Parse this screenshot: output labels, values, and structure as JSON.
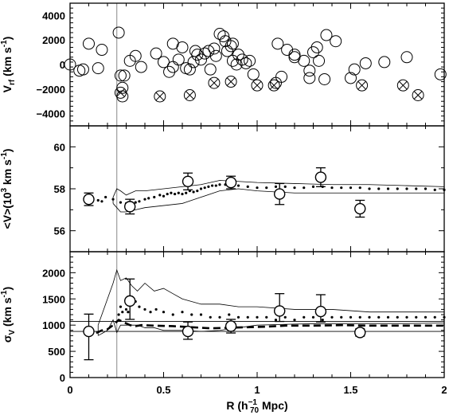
{
  "chart_data": [
    {
      "type": "scatter",
      "panel": "top",
      "ylabel": "V_rf (km s^-1)",
      "xlim": [
        0,
        2
      ],
      "ylim": [
        -5000,
        5000
      ],
      "yticks": [
        -4000,
        -2000,
        0,
        2000,
        4000
      ],
      "reference_line_x": 0.25,
      "series": [
        {
          "marker": "open-circle",
          "points": [
            [
              0.0,
              0
            ],
            [
              0.05,
              -500
            ],
            [
              0.07,
              -400
            ],
            [
              0.1,
              1700
            ],
            [
              0.15,
              -300
            ],
            [
              0.17,
              1200
            ],
            [
              0.26,
              2600
            ],
            [
              0.27,
              -900
            ],
            [
              0.28,
              -1900
            ],
            [
              0.28,
              -2600
            ],
            [
              0.29,
              -900
            ],
            [
              0.32,
              300
            ],
            [
              0.35,
              700
            ],
            [
              0.38,
              -200
            ],
            [
              0.46,
              900
            ],
            [
              0.5,
              200
            ],
            [
              0.53,
              -600
            ],
            [
              0.55,
              -200
            ],
            [
              0.55,
              1700
            ],
            [
              0.58,
              400
            ],
            [
              0.6,
              1400
            ],
            [
              0.62,
              -300
            ],
            [
              0.64,
              -400
            ],
            [
              0.66,
              200
            ],
            [
              0.67,
              1100
            ],
            [
              0.68,
              800
            ],
            [
              0.7,
              400
            ],
            [
              0.72,
              900
            ],
            [
              0.74,
              1100
            ],
            [
              0.75,
              -400
            ],
            [
              0.77,
              1300
            ],
            [
              0.78,
              700
            ],
            [
              0.8,
              2500
            ],
            [
              0.82,
              2300
            ],
            [
              0.83,
              1900
            ],
            [
              0.84,
              1100
            ],
            [
              0.86,
              1500
            ],
            [
              0.87,
              1700
            ],
            [
              0.87,
              300
            ],
            [
              0.89,
              0
            ],
            [
              0.9,
              800
            ],
            [
              0.92,
              400
            ],
            [
              0.94,
              100
            ],
            [
              0.96,
              300
            ],
            [
              0.98,
              -800
            ],
            [
              1.1,
              -1500
            ],
            [
              1.11,
              1700
            ],
            [
              1.13,
              -1000
            ],
            [
              1.16,
              1200
            ],
            [
              1.2,
              600
            ],
            [
              1.2,
              800
            ],
            [
              1.25,
              300
            ],
            [
              1.28,
              -500
            ],
            [
              1.28,
              -1100
            ],
            [
              1.3,
              1000
            ],
            [
              1.32,
              1400
            ],
            [
              1.33,
              300
            ],
            [
              1.36,
              -1200
            ],
            [
              1.37,
              2400
            ],
            [
              1.42,
              1900
            ],
            [
              1.5,
              -1100
            ],
            [
              1.52,
              -400
            ],
            [
              1.58,
              100
            ],
            [
              1.68,
              200
            ],
            [
              1.8,
              600
            ],
            [
              1.98,
              -800
            ]
          ]
        },
        {
          "marker": "crossed-circle",
          "points": [
            [
              0.27,
              -2300
            ],
            [
              0.48,
              -2600
            ],
            [
              0.64,
              -2500
            ],
            [
              0.77,
              -1500
            ],
            [
              0.86,
              -1400
            ],
            [
              1.0,
              -1700
            ],
            [
              1.09,
              -1700
            ],
            [
              1.56,
              -1700
            ],
            [
              1.78,
              -1700
            ],
            [
              1.86,
              -2500
            ]
          ]
        }
      ]
    },
    {
      "type": "line",
      "panel": "middle",
      "ylabel": "<V>(10^3 km s^-1)",
      "xlim": [
        0,
        2
      ],
      "ylim": [
        55,
        61
      ],
      "yticks": [
        56,
        58,
        60
      ],
      "envelope": {
        "x": [
          0.23,
          0.25,
          0.27,
          0.3,
          0.35,
          0.4,
          0.5,
          0.6,
          0.7,
          0.8,
          0.9,
          1.0,
          1.2,
          1.4,
          1.6,
          1.8,
          2.0
        ],
        "upper": [
          57.6,
          58.0,
          57.9,
          57.7,
          57.9,
          57.9,
          58.0,
          58.1,
          58.2,
          58.4,
          58.35,
          58.3,
          58.25,
          58.2,
          58.2,
          58.15,
          58.1
        ],
        "lower": [
          57.3,
          57.1,
          56.9,
          56.9,
          57.0,
          57.1,
          57.2,
          57.3,
          57.6,
          57.9,
          58.0,
          57.9,
          57.8,
          57.8,
          57.8,
          57.8,
          57.8
        ]
      },
      "running_mean_points": {
        "x": [
          0.15,
          0.17,
          0.19,
          0.23,
          0.27,
          0.3,
          0.33,
          0.35,
          0.37,
          0.4,
          0.42,
          0.45,
          0.48,
          0.5,
          0.52,
          0.54,
          0.56,
          0.58,
          0.6,
          0.62,
          0.64,
          0.66,
          0.68,
          0.7,
          0.72,
          0.74,
          0.76,
          0.78,
          0.8,
          0.83,
          0.86,
          0.9,
          0.95,
          1.0,
          1.05,
          1.1,
          1.15,
          1.2,
          1.25,
          1.3,
          1.35,
          1.4,
          1.45,
          1.5,
          1.55,
          1.6,
          1.65,
          1.7,
          1.75,
          1.8,
          1.85,
          1.9,
          1.95,
          2.0
        ],
        "y": [
          57.45,
          57.4,
          57.6,
          57.5,
          57.35,
          57.3,
          57.3,
          57.35,
          57.4,
          57.5,
          57.55,
          57.6,
          57.7,
          57.65,
          57.75,
          57.8,
          57.75,
          57.8,
          57.75,
          57.8,
          57.9,
          57.85,
          57.9,
          58.0,
          58.05,
          58.1,
          58.15,
          58.15,
          58.2,
          58.2,
          58.15,
          58.15,
          58.1,
          58.05,
          58.05,
          58.1,
          58.1,
          58.05,
          58.05,
          58.1,
          58.1,
          58.05,
          58.05,
          58.05,
          58.05,
          58.0,
          58.0,
          58.0,
          58.0,
          58.0,
          58.0,
          58.0,
          57.95,
          57.95
        ]
      },
      "binned_points": {
        "x": [
          0.1,
          0.32,
          0.63,
          0.86,
          1.12,
          1.34,
          1.55
        ],
        "y": [
          57.5,
          57.15,
          58.35,
          58.3,
          57.75,
          58.55,
          57.05
        ],
        "err": [
          0.3,
          0.35,
          0.4,
          0.3,
          0.5,
          0.45,
          0.4
        ]
      }
    },
    {
      "type": "line",
      "panel": "bottom",
      "xlabel": "R (h70^-1 Mpc)",
      "ylabel": "σ_V (km s^-1)",
      "xlim": [
        0,
        2
      ],
      "ylim": [
        0,
        2400
      ],
      "xticks": [
        0,
        0.5,
        1,
        1.5,
        2
      ],
      "xtick_labels": [
        "0",
        "0.5",
        "1",
        "1.5",
        "2"
      ],
      "yticks": [
        0,
        500,
        1000,
        1500,
        2000
      ],
      "horizontal_lines": [
        880,
        1070
      ],
      "envelope": {
        "x": [
          0.15,
          0.2,
          0.23,
          0.25,
          0.27,
          0.3,
          0.33,
          0.36,
          0.4,
          0.45,
          0.5,
          0.55,
          0.6,
          0.7,
          0.8,
          0.9,
          1.0,
          1.2,
          1.4,
          1.6,
          1.8,
          2.0
        ],
        "upper": [
          1000,
          1500,
          1800,
          2050,
          1850,
          1900,
          1750,
          1650,
          1800,
          1650,
          1700,
          1600,
          1500,
          1400,
          1400,
          1350,
          1350,
          1300,
          1300,
          1250,
          1250,
          1250
        ],
        "lower": [
          800,
          900,
          1100,
          860,
          1000,
          1000,
          1000,
          1000,
          950,
          950,
          900,
          900,
          900,
          880,
          900,
          950,
          1000,
          1020,
          1030,
          1030,
          1030,
          1040
        ]
      },
      "running_sigma_points": {
        "x": [
          0.26,
          0.27,
          0.28,
          0.3,
          0.31,
          0.33,
          0.35,
          0.37,
          0.4,
          0.43,
          0.46,
          0.5,
          0.55,
          0.6,
          0.65,
          0.7,
          0.75,
          0.8,
          0.85,
          0.9,
          0.95,
          1.0,
          1.05,
          1.1,
          1.15,
          1.2,
          1.25,
          1.3,
          1.35,
          1.4,
          1.45,
          1.5,
          1.55,
          1.6,
          1.65,
          1.7,
          1.75,
          1.8,
          1.85,
          1.9,
          1.95,
          2.0
        ],
        "y": [
          1200,
          1350,
          1250,
          1300,
          1250,
          1400,
          1450,
          1350,
          1300,
          1250,
          1300,
          1250,
          1200,
          1250,
          1200,
          1200,
          1150,
          1150,
          1200,
          1150,
          1150,
          1150,
          1150,
          1100,
          1150,
          1100,
          1150,
          1150,
          1100,
          1150,
          1150,
          1150,
          1150,
          1150,
          1150,
          1150,
          1150,
          1150,
          1150,
          1150,
          1150,
          1150
        ]
      },
      "dashed_curve": {
        "x": [
          0.14,
          0.17,
          0.2,
          0.23,
          0.26,
          0.29,
          0.32,
          0.35,
          0.38,
          0.45,
          0.55,
          0.65,
          0.75,
          0.85,
          0.95,
          1.05,
          1.15,
          1.3,
          1.45,
          1.6,
          1.8,
          2.0
        ],
        "y": [
          850,
          900,
          920,
          1000,
          1100,
          1050,
          1000,
          980,
          1000,
          990,
          980,
          960,
          940,
          950,
          960,
          970,
          990,
          990,
          1000,
          990,
          990,
          990
        ]
      },
      "binned_points": {
        "x": [
          0.1,
          0.32,
          0.63,
          0.86,
          1.12,
          1.34,
          1.55
        ],
        "y": [
          880,
          1460,
          880,
          980,
          1270,
          1260,
          860
        ],
        "err_upper": [
          330,
          420,
          180,
          130,
          330,
          320,
          70
        ],
        "err_lower": [
          540,
          350,
          150,
          130,
          200,
          200,
          70
        ]
      }
    }
  ]
}
